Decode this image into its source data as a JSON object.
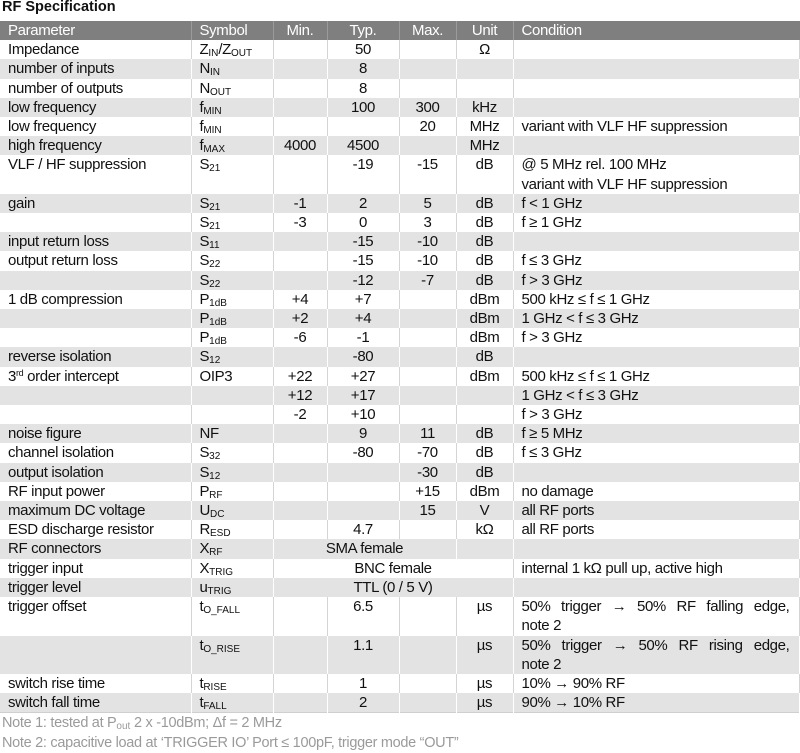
{
  "title": "RF Specification",
  "columns": {
    "param": "Parameter",
    "sym": "Symbol",
    "min": "Min.",
    "typ": "Typ.",
    "max": "Max.",
    "unit": "Unit",
    "cond": "Condition"
  },
  "rows": [
    {
      "param": "Impedance",
      "sym": [
        [
          "Z",
          "IN"
        ],
        [
          "/Z",
          "OUT"
        ]
      ],
      "typ": "50",
      "unit": "Ω"
    },
    {
      "param": "number of inputs",
      "sym": [
        [
          "N",
          "IN"
        ]
      ],
      "typ": "8"
    },
    {
      "param": "number of outputs",
      "sym": [
        [
          "N",
          "OUT"
        ]
      ],
      "typ": "8"
    },
    {
      "param": "low frequency",
      "sym": [
        [
          "f",
          "MIN"
        ]
      ],
      "typ": "100",
      "max": "300",
      "unit": "kHz"
    },
    {
      "param": "low frequency",
      "sym": [
        [
          "f",
          "MIN"
        ]
      ],
      "max": "20",
      "unit": "MHz",
      "cond": [
        "variant with VLF HF suppression"
      ]
    },
    {
      "param": "high frequency",
      "sym": [
        [
          "f",
          "MAX"
        ]
      ],
      "min": "4000",
      "typ": "4500",
      "unit": "MHz"
    },
    {
      "param": "VLF / HF suppression",
      "sym": [
        [
          "S",
          "21"
        ]
      ],
      "typ": "-19",
      "max": "-15",
      "unit": "dB",
      "cond": [
        "@ 5 MHz rel. 100 MHz",
        "variant with VLF HF suppression"
      ]
    },
    {
      "param": "gain",
      "sym": [
        [
          "S",
          "21"
        ]
      ],
      "min": "-1",
      "typ": "2",
      "max": "5",
      "unit": "dB",
      "cond": [
        "f < 1 GHz"
      ]
    },
    {
      "param": "",
      "sym": [
        [
          "S",
          "21"
        ]
      ],
      "min": "-3",
      "typ": "0",
      "max": "3",
      "unit": "dB",
      "cond": [
        "f ≥ 1 GHz"
      ]
    },
    {
      "param": "input return loss",
      "sym": [
        [
          "S",
          "11"
        ]
      ],
      "typ": "-15",
      "max": "-10",
      "unit": "dB"
    },
    {
      "param": "output return loss",
      "sym": [
        [
          "S",
          "22"
        ]
      ],
      "typ": "-15",
      "max": "-10",
      "unit": "dB",
      "cond": [
        "f ≤ 3 GHz"
      ]
    },
    {
      "param": "",
      "sym": [
        [
          "S",
          "22"
        ]
      ],
      "typ": "-12",
      "max": "-7",
      "unit": "dB",
      "cond": [
        "f > 3 GHz"
      ]
    },
    {
      "param": "1 dB compression",
      "sym": [
        [
          "P",
          "1dB"
        ]
      ],
      "min": "+4",
      "typ": "+7",
      "unit": "dBm",
      "cond": [
        "500 kHz ≤ f ≤ 1 GHz"
      ]
    },
    {
      "param": "",
      "sym": [
        [
          "P",
          "1dB"
        ]
      ],
      "min": "+2",
      "typ": "+4",
      "unit": "dBm",
      "cond": [
        "1 GHz < f ≤ 3 GHz"
      ]
    },
    {
      "param": "",
      "sym": [
        [
          "P",
          "1dB"
        ]
      ],
      "min": "-6",
      "typ": "-1",
      "unit": "dBm",
      "cond": [
        "f > 3 GHz"
      ]
    },
    {
      "param": "reverse isolation",
      "sym": [
        [
          "S",
          "12"
        ]
      ],
      "typ": "-80",
      "unit": "dB"
    },
    {
      "param": "3rd order intercept",
      "sym": [
        [
          "OIP3",
          ""
        ]
      ],
      "min": "+22",
      "typ": "+27",
      "unit": "dBm",
      "cond": [
        "500 kHz ≤ f ≤ 1 GHz"
      ]
    },
    {
      "param": "",
      "min": "+12",
      "typ": "+17",
      "cond": [
        "1 GHz < f ≤ 3 GHz"
      ]
    },
    {
      "param": "",
      "min": "-2",
      "typ": "+10",
      "cond": [
        "f > 3 GHz"
      ]
    },
    {
      "param": "noise figure",
      "sym": [
        [
          "NF",
          ""
        ]
      ],
      "typ": "9",
      "max": "11",
      "unit": "dB",
      "cond": [
        "f ≥ 5 MHz"
      ]
    },
    {
      "param": "channel isolation",
      "sym": [
        [
          "S",
          "32"
        ]
      ],
      "typ": "-80",
      "max": "-70",
      "unit": "dB",
      "cond": [
        "f ≤ 3 GHz"
      ]
    },
    {
      "param": "output isolation",
      "sym": [
        [
          "S",
          "12"
        ]
      ],
      "max": "-30",
      "unit": "dB"
    },
    {
      "param": "RF input power",
      "sym": [
        [
          "P",
          "RF"
        ]
      ],
      "max": "+15",
      "unit": "dBm",
      "cond": [
        "no damage"
      ]
    },
    {
      "param": "maximum DC voltage",
      "sym": [
        [
          "U",
          "DC"
        ]
      ],
      "max": "15",
      "unit": "V",
      "cond": [
        "all RF ports"
      ]
    },
    {
      "param": "ESD discharge resistor",
      "sym": [
        [
          "R",
          "ESD"
        ]
      ],
      "typ": "4.7",
      "unit": "kΩ",
      "cond": [
        "all RF ports"
      ]
    },
    {
      "param": "RF connectors",
      "sym": [
        [
          "X",
          "RF"
        ]
      ],
      "merged": "SMA female",
      "merge_to": "max"
    },
    {
      "param": "trigger input",
      "sym": [
        [
          "X",
          "TRIG"
        ]
      ],
      "merged": "BNC female",
      "merge_to": "unit",
      "cond": [
        "internal 1 kΩ pull up, active high"
      ]
    },
    {
      "param": "trigger level",
      "sym": [
        [
          "u",
          "TRIG"
        ]
      ],
      "merged": "TTL (0 / 5 V)",
      "merge_to": "unit"
    },
    {
      "param": "trigger offset",
      "sym": [
        [
          "t",
          "O_FALL"
        ]
      ],
      "typ": "6.5",
      "unit": "µs",
      "cond": [
        "50% trigger → 50% RF falling edge,",
        "note 2"
      ],
      "justify": true
    },
    {
      "param": "",
      "sym": [
        [
          "t",
          "O_RISE"
        ]
      ],
      "typ": "1.1",
      "unit": "µs",
      "cond": [
        "50% trigger → 50% RF rising edge,",
        "note 2"
      ],
      "justify": true
    },
    {
      "param": "switch rise time",
      "sym": [
        [
          "t",
          "RISE"
        ]
      ],
      "typ": "1",
      "unit": "µs",
      "cond": [
        "10% → 90% RF"
      ]
    },
    {
      "param": "switch fall time",
      "sym": [
        [
          "t",
          "FALL"
        ]
      ],
      "typ": "2",
      "unit": "µs",
      "cond": [
        "90% → 10% RF"
      ]
    }
  ],
  "notes": {
    "note1": {
      "pre": "Note 1: tested at P",
      "sub": "out",
      "post": " 2 x -10dBm; Δf = 2 MHz"
    },
    "note2": "Note 2: capacitive load at ‘TRIGGER IO’ Port ≤ 100pF, trigger mode “OUT”"
  },
  "colors": {
    "header_bg": "#7f7f7f",
    "stripe": "#e3e3e3",
    "note_text": "#9a9a9a"
  }
}
